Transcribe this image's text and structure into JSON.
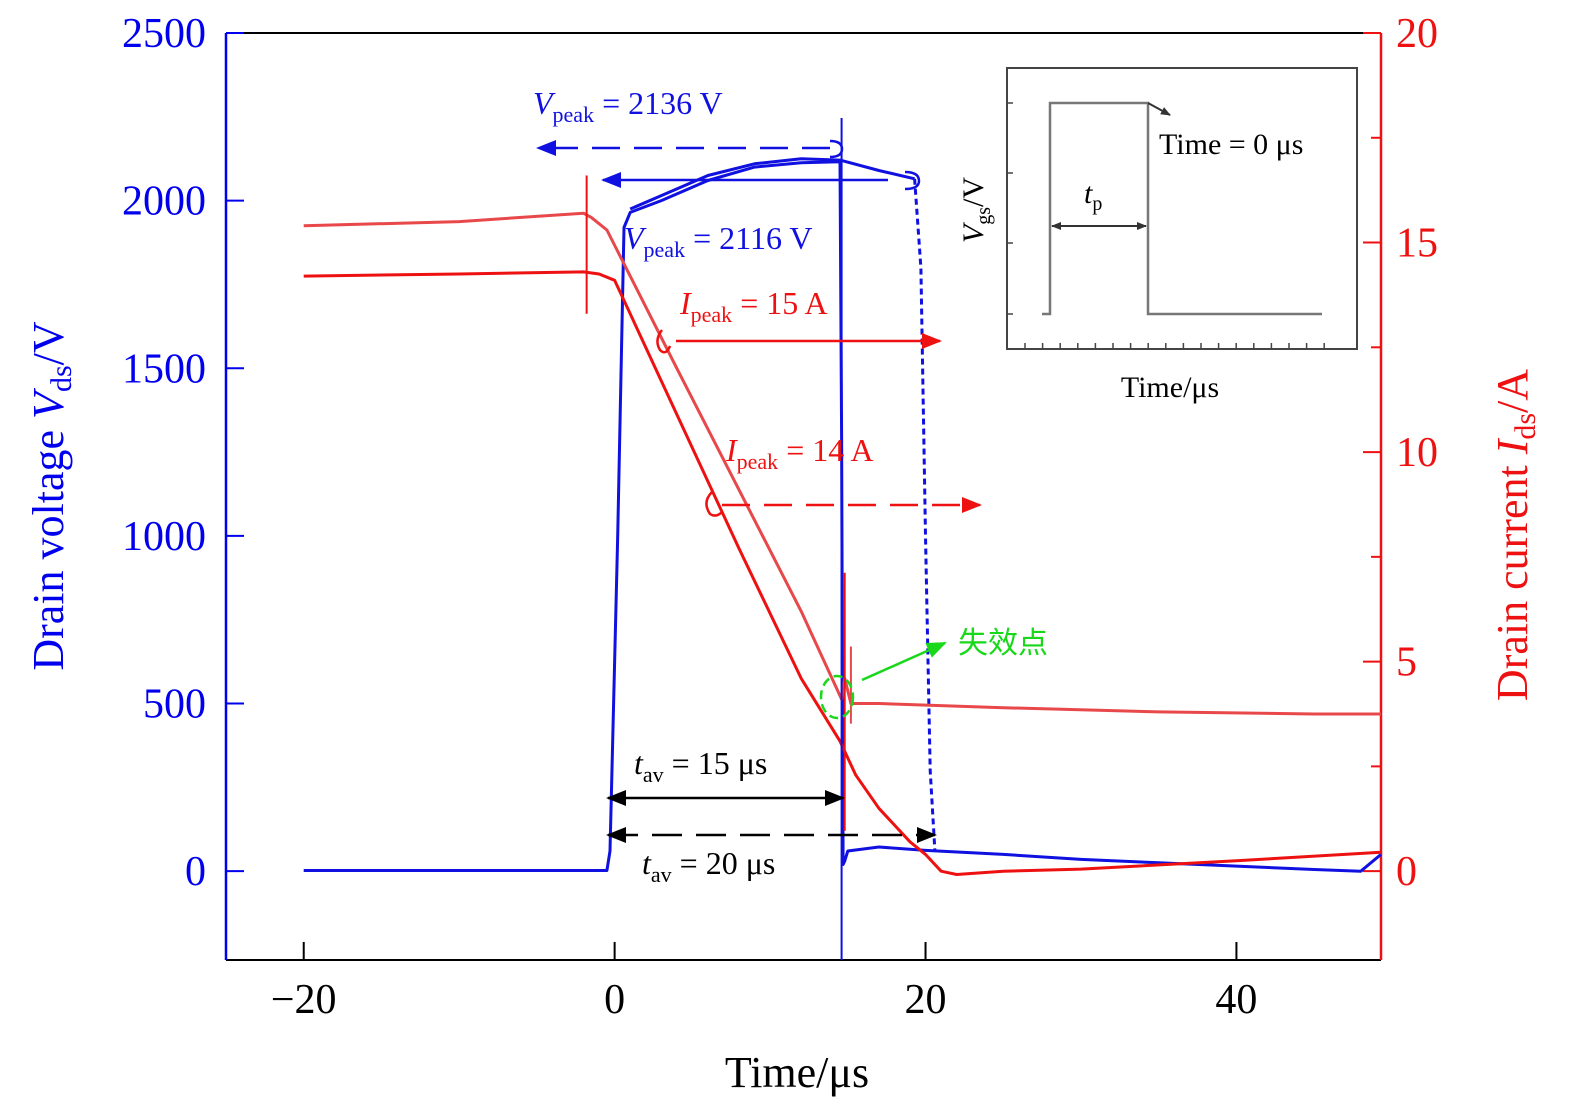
{
  "chart_data": {
    "type": "line",
    "x_axis": {
      "label": "Time/μs",
      "ticks": [
        -20,
        0,
        20,
        40
      ],
      "tick_labels": [
        "−20",
        "0",
        "20",
        "40"
      ],
      "lim": [
        -25,
        49.3
      ]
    },
    "y_left": {
      "label_prefix": "Drain voltage ",
      "label_var": "V",
      "label_sub": "ds",
      "label_unit": "/V",
      "ticks": [
        0,
        500,
        1000,
        1500,
        2000,
        2500
      ],
      "tick_labels": [
        "0",
        "500",
        "1000",
        "1500",
        "2000",
        "2500"
      ],
      "lim": [
        -265,
        2500
      ],
      "color": "#0000ee"
    },
    "y_right": {
      "label_prefix": "Drain current ",
      "label_var": "I",
      "label_sub": "ds",
      "label_unit": "/A",
      "ticks": [
        0,
        5,
        10,
        15,
        20
      ],
      "tick_labels": [
        "0",
        "5",
        "10",
        "15",
        "20"
      ],
      "lim": [
        -2.12,
        20
      ],
      "color": "#ee1111"
    },
    "series": [
      {
        "name": "Vds (tav = 15 μs, failed)",
        "axis": "left",
        "color": "#1010e0",
        "dash": false,
        "x": [
          -20,
          -0.5,
          -0.3,
          0.2,
          0.6,
          1.0,
          3,
          6,
          9,
          12,
          14.5,
          14.6,
          14.7,
          14.8,
          15.0,
          17,
          20,
          25,
          30,
          35,
          40,
          45,
          48,
          49.3
        ],
        "y": [
          2,
          2,
          60,
          1000,
          1920,
          1965,
          2000,
          2060,
          2100,
          2113,
          2116,
          1300,
          20,
          30,
          60,
          72,
          62,
          50,
          35,
          25,
          15,
          5,
          0,
          50
        ]
      },
      {
        "name": "Vds (tav = 20 μs)",
        "axis": "left",
        "color": "#1010e0",
        "dash": false,
        "x": [
          1.0,
          3,
          6,
          9,
          12,
          14.5,
          17,
          19.3
        ],
        "y": [
          1975,
          2015,
          2075,
          2110,
          2125,
          2121,
          2090,
          2065
        ]
      },
      {
        "name": "Vds (tav = 20 μs) fall",
        "axis": "left",
        "color": "#1010e0",
        "dash": true,
        "x": [
          19.3,
          19.7,
          20.0,
          20.3,
          20.6
        ],
        "y": [
          2065,
          1800,
          1000,
          300,
          60
        ]
      },
      {
        "name": "Ids (tav = 20 μs)",
        "axis": "right",
        "color": "#e8484a",
        "dash": false,
        "x": [
          -20,
          -10,
          -2,
          -1.5,
          -0.5,
          1,
          4,
          8,
          12,
          14.6,
          14.8,
          15.2,
          17,
          25,
          35,
          45,
          49.3
        ],
        "y": [
          15.4,
          15.5,
          15.7,
          15.6,
          15.3,
          14.2,
          12.0,
          9.1,
          6.2,
          4.1,
          4.6,
          4.0,
          4.0,
          3.9,
          3.8,
          3.75,
          3.75
        ]
      },
      {
        "name": "Ids (tav = 15 μs)",
        "axis": "right",
        "color": "#ee1111",
        "dash": false,
        "x": [
          -20,
          -10,
          -2,
          -1,
          0,
          1,
          4,
          8,
          12,
          14.5,
          15.5,
          17,
          19,
          20,
          21,
          22,
          25,
          30,
          40,
          49.3
        ],
        "y": [
          14.2,
          14.25,
          14.3,
          14.25,
          14.1,
          13.3,
          10.9,
          7.7,
          4.6,
          3.1,
          2.3,
          1.5,
          0.7,
          0.4,
          0.0,
          -0.08,
          0.0,
          0.05,
          0.25,
          0.45
        ]
      }
    ],
    "annotations": {
      "vpeak1": {
        "var": "V",
        "sub": "peak",
        "value": " = 2136 V"
      },
      "vpeak2": {
        "var": "V",
        "sub": "peak",
        "value": " = 2116 V"
      },
      "ipeak1": {
        "var": "I",
        "sub": "peak",
        "value": " = 15 A"
      },
      "ipeak2": {
        "var": "I",
        "sub": "peak",
        "value": " = 14 A"
      },
      "tav1": {
        "var": "t",
        "sub": "av",
        "value": " = 15 μs"
      },
      "tav2": {
        "var": "t",
        "sub": "av",
        "value": " = 20 μs"
      },
      "failure_point": "失效点"
    },
    "inset": {
      "ylabel_var": "V",
      "ylabel_sub": "gs",
      "ylabel_unit": "/V",
      "xlabel": "Time/μs",
      "pulse_label_var": "t",
      "pulse_label_sub": "p",
      "time_label": "Time = 0 μs"
    }
  }
}
